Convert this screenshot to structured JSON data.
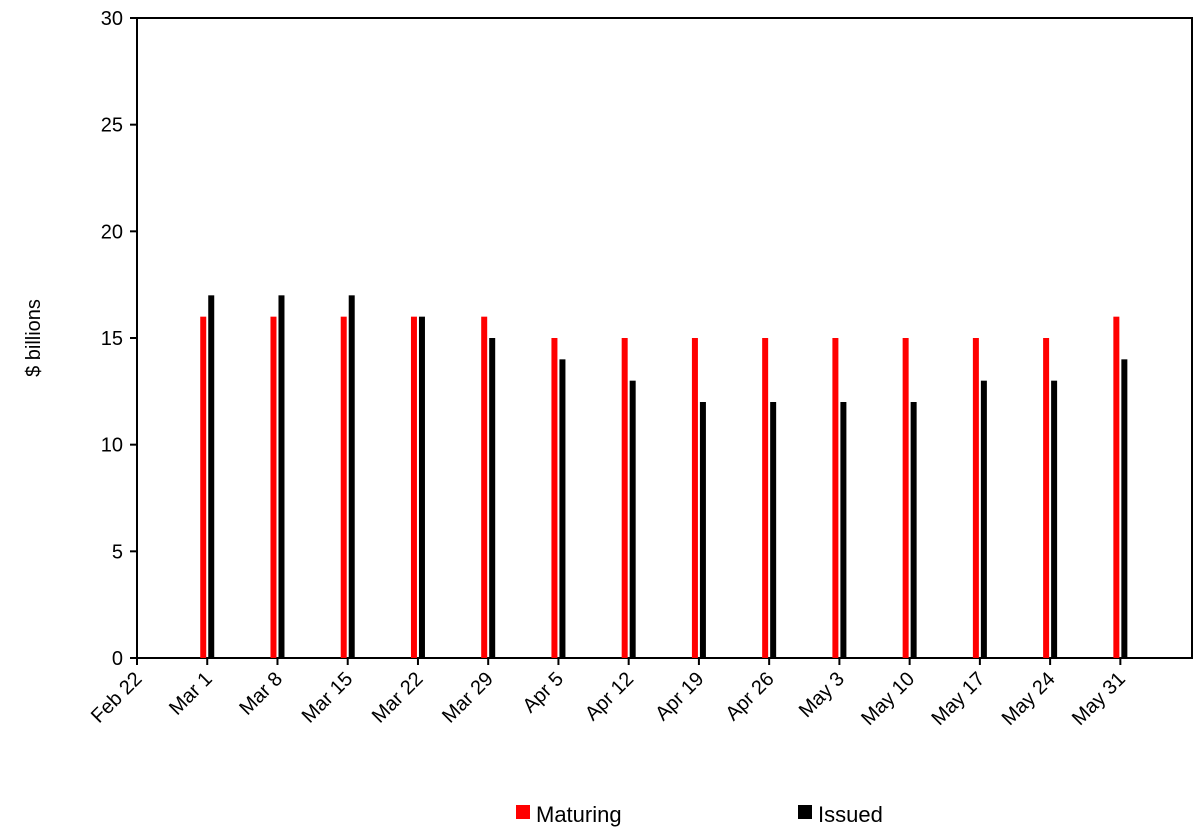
{
  "chart_data": {
    "type": "bar",
    "title": "",
    "xlabel": "",
    "ylabel": "$ billions",
    "ylim": [
      0,
      30
    ],
    "yticks": [
      0,
      5,
      10,
      15,
      20,
      25,
      30
    ],
    "categories": [
      "Feb 22",
      "Mar 1",
      "Mar 8",
      "Mar 15",
      "Mar 22",
      "Mar 29",
      "Apr 5",
      "Apr 12",
      "Apr 19",
      "Apr 26",
      "May 3",
      "May 10",
      "May 17",
      "May 24",
      "May 31"
    ],
    "series": [
      {
        "name": "Maturing",
        "color": "#ff0000",
        "values": [
          null,
          16,
          16,
          16,
          16,
          16,
          15,
          15,
          15,
          15,
          15,
          15,
          15,
          15,
          16
        ]
      },
      {
        "name": "Issued",
        "color": "#000000",
        "values": [
          null,
          17,
          17,
          17,
          16,
          15,
          14,
          13,
          12,
          12,
          12,
          12,
          13,
          13,
          14
        ]
      }
    ],
    "grid": false,
    "legend": "bottom"
  }
}
